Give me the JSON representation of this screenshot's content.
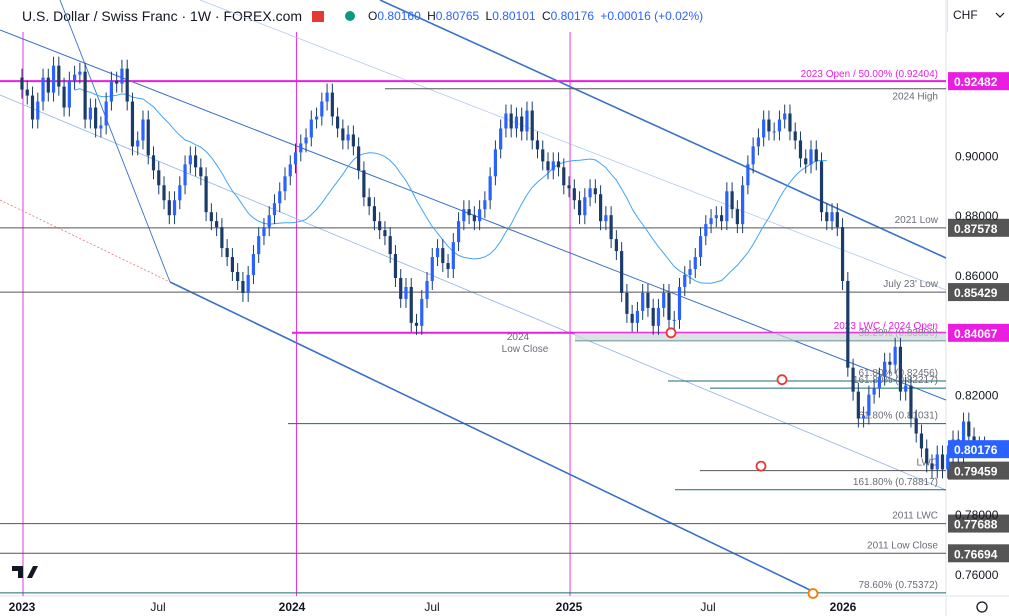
{
  "header": {
    "title": "U.S. Dollar / Swiss Franc · 1W · FOREX.com",
    "open_label": "O",
    "open": "0.80160",
    "high_label": "H",
    "high": "0.80765",
    "low_label": "L",
    "low": "0.80101",
    "close_label": "C",
    "close": "0.80176",
    "change": "+0.00016 (+0.02%)",
    "currency": "CHF"
  },
  "colors": {
    "up": "#2962ff",
    "down": "#2962ff",
    "magenta": "#e91ee0",
    "level": "#555555",
    "teal": "#1b6b6b",
    "channel": "#3a70c9",
    "ma": "#42a5f5",
    "marker_red": "#e53935",
    "marker_orange": "#f57c00"
  },
  "chart_data": {
    "type": "candlestick",
    "symbol": "USD/CHF",
    "timeframe": "1W",
    "ylim": [
      0.752,
      0.946
    ],
    "x_ticks": [
      "2023",
      "Jul",
      "2024",
      "Jul",
      "2025",
      "Jul",
      "2026"
    ],
    "y_ticks": [
      "0.90000",
      "0.88000",
      "0.86000",
      "0.82000",
      "0.78000",
      "0.76000"
    ],
    "last_price": "0.80176",
    "levels": [
      {
        "value": 0.92482,
        "label": "2023 Open / 50.00% (0.92404)",
        "axis_label": "0.92482",
        "kind": "magenta"
      },
      {
        "value": 0.9223,
        "label": "2024 High",
        "axis_label": "",
        "kind": "grey"
      },
      {
        "value": 0.87578,
        "label": "2021 Low",
        "axis_label": "0.87578",
        "kind": "grey"
      },
      {
        "value": 0.85429,
        "label": "July 23' Low",
        "axis_label": "0.85429",
        "kind": "grey"
      },
      {
        "value": 0.84067,
        "label": "2023 LWC / 2024 Open",
        "axis_label": "0.84067",
        "kind": "magenta"
      },
      {
        "value": 0.838,
        "label": "38.20% (0.83800)",
        "axis_label": "",
        "kind": "teal"
      },
      {
        "value": 0.82456,
        "label": "61.80% (0.82456)",
        "axis_label": "",
        "kind": "teal"
      },
      {
        "value": 0.82217,
        "label": "161.80% (0.82217)",
        "axis_label": "",
        "kind": "blue"
      },
      {
        "value": 0.81031,
        "label": "61.80% (0.81031)",
        "axis_label": "",
        "kind": "blue"
      },
      {
        "value": 0.79459,
        "label": "LWC",
        "axis_label": "0.79459",
        "kind": "grey"
      },
      {
        "value": 0.78817,
        "label": "161.80% (0.78817)",
        "axis_label": "",
        "kind": "blue"
      },
      {
        "value": 0.77688,
        "label": "2011 LWC",
        "axis_label": "0.77688",
        "kind": "grey"
      },
      {
        "value": 0.76694,
        "label": "2011 Low Close",
        "axis_label": "0.76694",
        "kind": "grey"
      },
      {
        "value": 0.75372,
        "label": "78.60% (0.75372)",
        "axis_label": "",
        "kind": "teal"
      }
    ],
    "annotation": {
      "line1": "2024",
      "line2": "Low Close"
    },
    "closes": [
      0.922,
      0.92,
      0.912,
      0.918,
      0.926,
      0.921,
      0.93,
      0.923,
      0.916,
      0.925,
      0.927,
      0.928,
      0.912,
      0.916,
      0.909,
      0.91,
      0.918,
      0.925,
      0.924,
      0.929,
      0.918,
      0.903,
      0.905,
      0.912,
      0.9,
      0.895,
      0.89,
      0.885,
      0.88,
      0.885,
      0.89,
      0.897,
      0.9,
      0.896,
      0.893,
      0.881,
      0.878,
      0.876,
      0.869,
      0.866,
      0.861,
      0.858,
      0.854,
      0.86,
      0.867,
      0.873,
      0.876,
      0.88,
      0.884,
      0.888,
      0.893,
      0.897,
      0.901,
      0.904,
      0.906,
      0.912,
      0.913,
      0.918,
      0.921,
      0.913,
      0.909,
      0.905,
      0.907,
      0.903,
      0.895,
      0.886,
      0.883,
      0.878,
      0.875,
      0.873,
      0.867,
      0.859,
      0.852,
      0.856,
      0.844,
      0.843,
      0.852,
      0.858,
      0.866,
      0.869,
      0.864,
      0.862,
      0.871,
      0.878,
      0.882,
      0.88,
      0.878,
      0.882,
      0.885,
      0.893,
      0.902,
      0.909,
      0.914,
      0.909,
      0.913,
      0.908,
      0.915,
      0.905,
      0.902,
      0.898,
      0.895,
      0.898,
      0.896,
      0.89,
      0.889,
      0.885,
      0.88,
      0.886,
      0.889,
      0.887,
      0.878,
      0.88,
      0.872,
      0.868,
      0.854,
      0.847,
      0.844,
      0.848,
      0.854,
      0.849,
      0.843,
      0.849,
      0.854,
      0.845,
      0.845,
      0.856,
      0.86,
      0.862,
      0.866,
      0.873,
      0.877,
      0.879,
      0.88,
      0.878,
      0.888,
      0.882,
      0.877,
      0.89,
      0.897,
      0.903,
      0.906,
      0.912,
      0.908,
      0.908,
      0.912,
      0.914,
      0.908,
      0.905,
      0.899,
      0.897,
      0.902,
      0.898,
      0.881,
      0.878,
      0.881,
      0.876,
      0.858,
      0.829,
      0.821,
      0.812,
      0.813,
      0.82,
      0.822,
      0.826,
      0.831,
      0.83,
      0.836,
      0.821,
      0.823,
      0.812,
      0.807,
      0.802,
      0.797,
      0.795,
      0.8,
      0.795,
      0.8,
      0.805,
      0.8,
      0.811,
      0.806,
      0.802,
      0.803,
      0.80176
    ]
  }
}
